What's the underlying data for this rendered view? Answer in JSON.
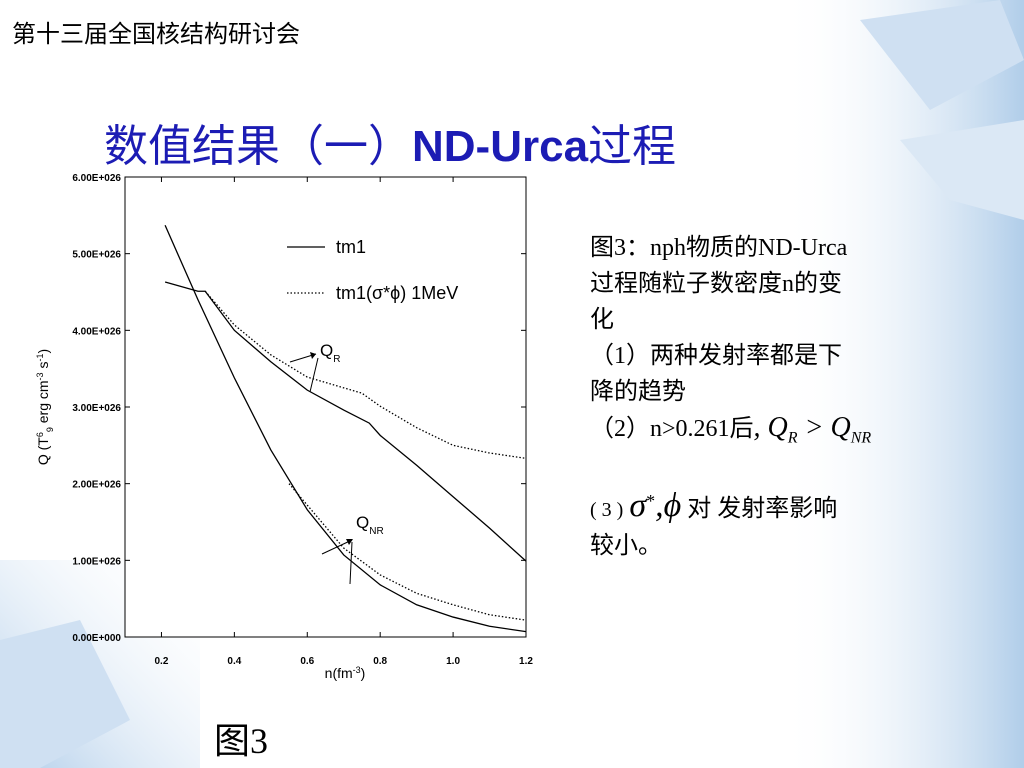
{
  "header": "第十三届全国核结构研讨会",
  "title": {
    "before": "数值结果（一）",
    "bold": "ND-Urca",
    "after": "过程"
  },
  "caption": "图3",
  "notes": {
    "lines": [
      "图3：nph物质的ND-Urca",
      "过程随粒子数密度n的变",
      "化",
      "（1）两种发射率都是下",
      "降的趋势",
      "（2）n>0.261后"
    ],
    "math": {
      "comma": ",",
      "q1": "Q",
      "sub1": "R",
      "op": ">",
      "q2": "Q",
      "sub2": "NR"
    },
    "item3": {
      "num": "( 3 )",
      "sigma": "σ",
      "star": "*",
      "phi": ",ϕ",
      "rest": "对 发射率影响",
      "end": "较小。"
    }
  },
  "chart_data": {
    "type": "line",
    "xlabel": [
      {
        "text": "n(fm",
        "shift": ""
      },
      {
        "text": "-3",
        "shift": "super"
      },
      {
        "text": ")",
        "shift": ""
      }
    ],
    "ylabel": [
      {
        "text": "Q (T",
        "shift": ""
      },
      {
        "text": "6",
        "shift": "super"
      },
      {
        "text": "9",
        "shift": "sub"
      },
      {
        "text": " erg cm",
        "shift": ""
      },
      {
        "text": "-3",
        "shift": "super"
      },
      {
        "text": " s",
        "shift": ""
      },
      {
        "text": "-1",
        "shift": "super"
      },
      {
        "text": ")",
        "shift": ""
      }
    ],
    "xlim": [
      0.1,
      1.2
    ],
    "ylim": [
      0,
      6e+26
    ],
    "xticks": [
      {
        "value": 0.2,
        "label": "0.2"
      },
      {
        "value": 0.4,
        "label": "0.4"
      },
      {
        "value": 0.6,
        "label": "0.6"
      },
      {
        "value": 0.8,
        "label": "0.8"
      },
      {
        "value": 1.0,
        "label": "1.0"
      },
      {
        "value": 1.2,
        "label": "1.2"
      }
    ],
    "yticks": [
      {
        "value": 0,
        "label": "0.00E+000"
      },
      {
        "value": 1e+26,
        "label": "1.00E+026"
      },
      {
        "value": 2e+26,
        "label": "2.00E+026"
      },
      {
        "value": 3e+26,
        "label": "3.00E+026"
      },
      {
        "value": 4e+26,
        "label": "4.00E+026"
      },
      {
        "value": 5e+26,
        "label": "5.00E+026"
      },
      {
        "value": 6e+26,
        "label": "6.00E+026"
      }
    ],
    "grid": false,
    "series": [
      {
        "name": "tm1",
        "color": "#000000",
        "dashed": false,
        "curves": [
          {
            "x": [
              0.21,
              0.3,
              0.32,
              0.4,
              0.5,
              0.6,
              0.7,
              0.77,
              0.8,
              0.9,
              1.0,
              1.1,
              1.2
            ],
            "values": [
              4.63e+26,
              4.51e+26,
              4.51e+26,
              4e+26,
              3.59e+26,
              3.22e+26,
              2.96e+26,
              2.79e+26,
              2.63e+26,
              2.24e+26,
              1.83e+26,
              1.42e+26,
              9.9e+25
            ]
          },
          {
            "x": [
              0.21,
              0.3,
              0.4,
              0.5,
              0.6,
              0.7,
              0.8,
              0.9,
              1.0,
              1.1,
              1.2
            ],
            "values": [
              5.37e+26,
              4.4e+26,
              3.38e+26,
              2.44e+26,
              1.66e+26,
              1.07e+26,
              6.8e+25,
              4.2e+25,
              2.6e+25,
              1.4e+25,
              7e+24
            ]
          }
        ]
      },
      {
        "name": "tm1(σ*ϕ) 1MeV",
        "color": "#000000",
        "dashed": true,
        "curves": [
          {
            "x": [
              0.32,
              0.4,
              0.5,
              0.6,
              0.7,
              0.75,
              0.8,
              0.9,
              1.0,
              1.1,
              1.2
            ],
            "values": [
              4.51e+26,
              4.07e+26,
              3.68e+26,
              3.39e+26,
              3.25e+26,
              3.18e+26,
              3.01e+26,
              2.73e+26,
              2.5e+26,
              2.4e+26,
              2.33e+26
            ]
          },
          {
            "x": [
              0.55,
              0.6,
              0.7,
              0.8,
              0.9,
              1.0,
              1.1,
              1.2
            ],
            "values": [
              2e+26,
              1.72e+26,
              1.16e+26,
              8.1e+25,
              5.7e+25,
              4.2e+25,
              2.9e+25,
              2.2e+25
            ]
          }
        ]
      }
    ],
    "annotations": [
      {
        "text": "Q",
        "sub": "R"
      },
      {
        "text": "Q",
        "sub": "NR"
      }
    ]
  }
}
